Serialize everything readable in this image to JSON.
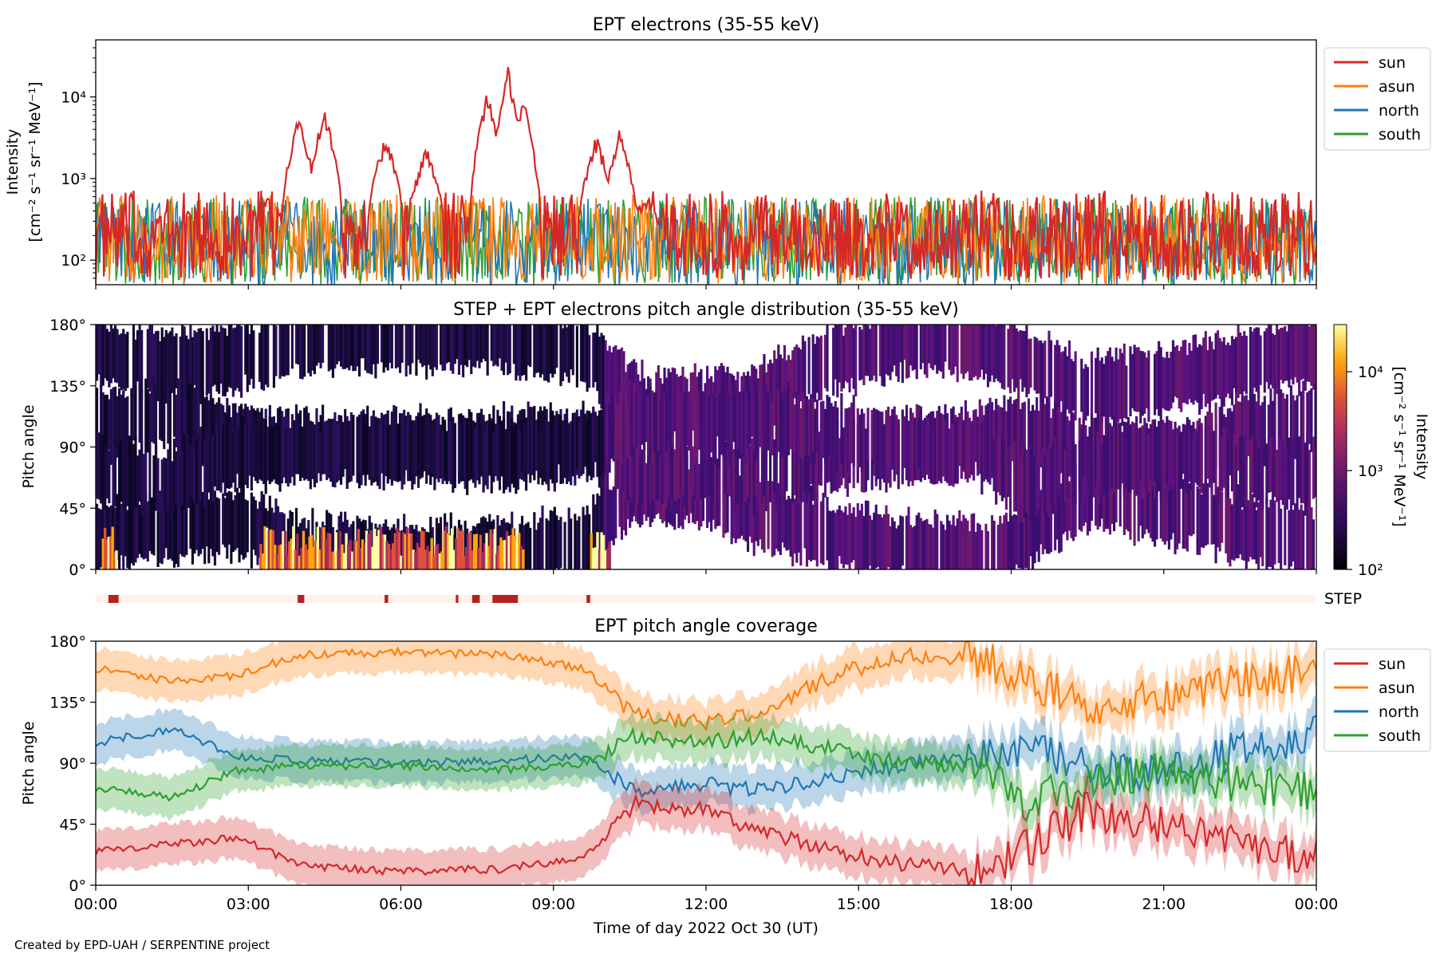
{
  "credit": "Created by EPD-UAH / SERPENTINE project",
  "colors": {
    "sun": "#d62728",
    "asun": "#ff7f0e",
    "north": "#1f77b4",
    "south": "#2ca02c",
    "step_bar": "#b22222",
    "step_bg": "#fff0eb"
  },
  "chart_data": [
    {
      "type": "line",
      "title": "EPT electrons (35-55 keV)",
      "ylabel": [
        "Intensity",
        "[cm⁻² s⁻¹ sr⁻¹ MeV⁻¹]"
      ],
      "yscale": "log",
      "ylim": [
        50,
        50000
      ],
      "yticks": [
        {
          "value": 100,
          "label": "10²"
        },
        {
          "value": 1000,
          "label": "10³"
        },
        {
          "value": 10000,
          "label": "10⁴"
        }
      ],
      "xlim_hours": [
        0,
        24
      ],
      "legend_position": "right",
      "series": [
        {
          "name": "sun",
          "color": "#d62728",
          "baseline": 200,
          "events": [
            [
              4.0,
              6500
            ],
            [
              4.5,
              7500
            ],
            [
              5.7,
              3500
            ],
            [
              6.5,
              2500
            ],
            [
              7.7,
              12000
            ],
            [
              8.1,
              25000
            ],
            [
              8.4,
              10000
            ],
            [
              9.85,
              3500
            ],
            [
              10.3,
              4000
            ],
            [
              10.8,
              600
            ]
          ]
        },
        {
          "name": "asun",
          "color": "#ff7f0e",
          "baseline": 180
        },
        {
          "name": "north",
          "color": "#1f77b4",
          "baseline": 160
        },
        {
          "name": "south",
          "color": "#2ca02c",
          "baseline": 170
        }
      ]
    },
    {
      "type": "heatmap",
      "title": "STEP + EPT electrons pitch angle distribution (35-55 keV)",
      "ylabel": "Pitch angle",
      "ylim": [
        0,
        180
      ],
      "yticks": [
        {
          "value": 0,
          "label": "0°"
        },
        {
          "value": 45,
          "label": "45°"
        },
        {
          "value": 90,
          "label": "90°"
        },
        {
          "value": 135,
          "label": "135°"
        },
        {
          "value": 180,
          "label": "180°"
        }
      ],
      "colorbar": {
        "label": [
          "Intensity",
          "[cm⁻² s⁻¹ sr⁻¹ MeV⁻¹]"
        ],
        "scale": "log",
        "range": [
          100,
          30000
        ],
        "ticks": [
          {
            "value": 100,
            "label": "10²"
          },
          {
            "value": 1000,
            "label": "10³"
          },
          {
            "value": 10000,
            "label": "10⁴"
          }
        ]
      },
      "hot_low_pitch_spans_hours": [
        [
          0.1,
          0.4
        ],
        [
          3.2,
          5.2
        ],
        [
          5.2,
          8.4
        ],
        [
          9.7,
          10.1
        ]
      ]
    },
    {
      "type": "bar",
      "label": "STEP",
      "active_intervals_hours": [
        [
          0.25,
          0.45
        ],
        [
          3.97,
          4.1
        ],
        [
          5.68,
          5.75
        ],
        [
          7.08,
          7.13
        ],
        [
          7.4,
          7.55
        ],
        [
          7.8,
          8.3
        ],
        [
          9.65,
          9.72
        ]
      ]
    },
    {
      "type": "area",
      "title": "EPT pitch angle coverage",
      "ylabel": "Pitch angle",
      "xlabel": "Time of day 2022 Oct 30 (UT)",
      "ylim": [
        0,
        180
      ],
      "xlim_hours": [
        0,
        24
      ],
      "yticks": [
        {
          "value": 0,
          "label": "0°"
        },
        {
          "value": 45,
          "label": "45°"
        },
        {
          "value": 90,
          "label": "90°"
        },
        {
          "value": 135,
          "label": "135°"
        },
        {
          "value": 180,
          "label": "180°"
        }
      ],
      "xticks": [
        {
          "value": 0,
          "label": "00:00"
        },
        {
          "value": 3,
          "label": "03:00"
        },
        {
          "value": 6,
          "label": "06:00"
        },
        {
          "value": 9,
          "label": "09:00"
        },
        {
          "value": 12,
          "label": "12:00"
        },
        {
          "value": 15,
          "label": "15:00"
        },
        {
          "value": 18,
          "label": "18:00"
        },
        {
          "value": 21,
          "label": "21:00"
        },
        {
          "value": 24,
          "label": "00:00"
        }
      ],
      "legend_position": "right",
      "series": [
        {
          "name": "sun",
          "color": "#d62728",
          "x": [
            0,
            1.5,
            2.8,
            4.0,
            6.0,
            8.0,
            9.6,
            10.6,
            12.0,
            13.0,
            14.5,
            16.0,
            17.5,
            18.2,
            19.5,
            21.0,
            22.5,
            24.0
          ],
          "y": [
            25,
            30,
            35,
            15,
            10,
            12,
            20,
            60,
            55,
            40,
            25,
            15,
            10,
            25,
            55,
            45,
            30,
            20
          ]
        },
        {
          "name": "asun",
          "color": "#ff7f0e",
          "x": [
            0,
            1.5,
            2.8,
            4.0,
            6.0,
            8.0,
            9.6,
            10.6,
            12.0,
            13.0,
            14.5,
            16.0,
            17.5,
            18.2,
            19.5,
            21.0,
            22.5,
            24.0
          ],
          "y": [
            160,
            150,
            155,
            170,
            172,
            170,
            160,
            125,
            120,
            125,
            155,
            170,
            165,
            155,
            130,
            140,
            150,
            160
          ]
        },
        {
          "name": "north",
          "color": "#1f77b4",
          "x": [
            0,
            1.5,
            2.8,
            4.0,
            6.0,
            8.0,
            9.6,
            10.6,
            12.0,
            13.0,
            14.5,
            16.0,
            17.5,
            18.2,
            19.5,
            21.0,
            22.5,
            24.0
          ],
          "y": [
            105,
            115,
            95,
            92,
            90,
            92,
            95,
            70,
            75,
            70,
            80,
            90,
            95,
            100,
            90,
            80,
            100,
            110
          ]
        },
        {
          "name": "south",
          "color": "#2ca02c",
          "x": [
            0,
            1.5,
            2.8,
            4.0,
            6.0,
            8.0,
            9.6,
            10.6,
            12.0,
            13.0,
            14.5,
            16.0,
            17.5,
            18.2,
            19.5,
            21.0,
            22.5,
            24.0
          ],
          "y": [
            72,
            65,
            85,
            88,
            88,
            85,
            90,
            110,
            105,
            110,
            100,
            90,
            85,
            60,
            75,
            85,
            75,
            70
          ]
        }
      ]
    }
  ]
}
